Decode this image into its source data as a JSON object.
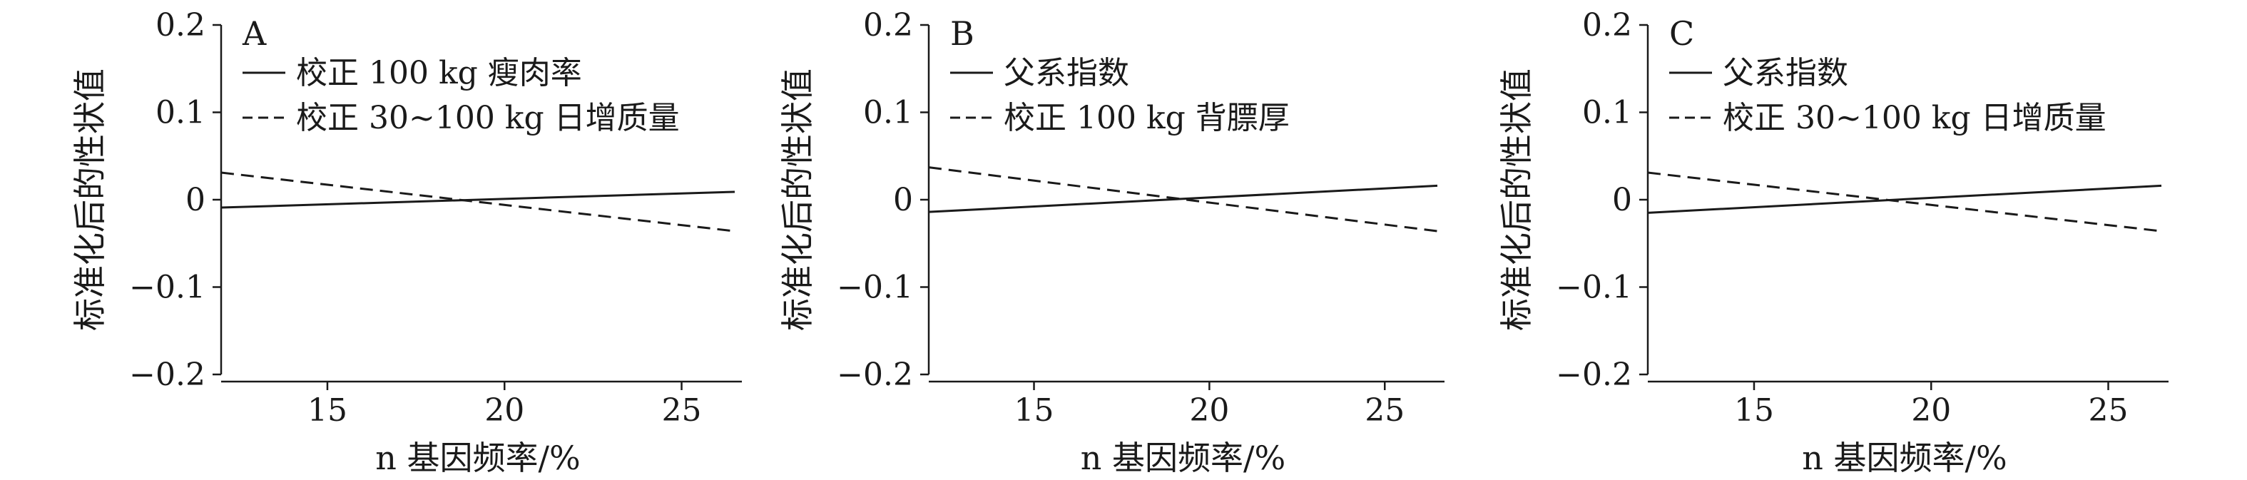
{
  "chart_data": [
    {
      "type": "line",
      "panel_label": "A",
      "xlabel": "n 基因频率/%",
      "ylabel": "标准化后的性状值",
      "xlim": [
        12,
        26.5
      ],
      "ylim": [
        -0.2,
        0.2
      ],
      "xticks": [
        15,
        20,
        25
      ],
      "yticks": [
        0.2,
        0.1,
        0,
        -0.1,
        -0.2
      ],
      "ytick_labels": [
        "0.2",
        "0.1",
        "0",
        "−0.1",
        "−0.2"
      ],
      "legend_position": "top-left",
      "grid": false,
      "series": [
        {
          "name": "校正 100 kg 瘦肉率",
          "style": "solid",
          "x": [
            12,
            26.5
          ],
          "y": [
            -0.009,
            0.009
          ]
        },
        {
          "name": "校正 30~100 kg 日增质量",
          "style": "dashed",
          "x": [
            12,
            26.5
          ],
          "y": [
            0.031,
            -0.036
          ]
        }
      ]
    },
    {
      "type": "line",
      "panel_label": "B",
      "xlabel": "n 基因频率/%",
      "ylabel": "标准化后的性状值",
      "xlim": [
        12,
        26.5
      ],
      "ylim": [
        -0.2,
        0.2
      ],
      "xticks": [
        15,
        20,
        25
      ],
      "yticks": [
        0.2,
        0.1,
        0,
        -0.1,
        -0.2
      ],
      "ytick_labels": [
        "0.2",
        "0.1",
        "0",
        "−0.1",
        "−0.2"
      ],
      "legend_position": "top-left",
      "grid": false,
      "series": [
        {
          "name": "父系指数",
          "style": "solid",
          "x": [
            12,
            26.5
          ],
          "y": [
            -0.014,
            0.016
          ]
        },
        {
          "name": "校正 100 kg 背膘厚",
          "style": "dashed",
          "x": [
            12,
            26.5
          ],
          "y": [
            0.037,
            -0.036
          ]
        }
      ]
    },
    {
      "type": "line",
      "panel_label": "C",
      "xlabel": "n 基因频率/%",
      "ylabel": "标准化后的性状值",
      "xlim": [
        12,
        26.5
      ],
      "ylim": [
        -0.2,
        0.2
      ],
      "xticks": [
        15,
        20,
        25
      ],
      "yticks": [
        0.2,
        0.1,
        0,
        -0.1,
        -0.2
      ],
      "ytick_labels": [
        "0.2",
        "0.1",
        "0",
        "−0.1",
        "−0.2"
      ],
      "legend_position": "top-left",
      "grid": false,
      "series": [
        {
          "name": "父系指数",
          "style": "solid",
          "x": [
            12,
            26.5
          ],
          "y": [
            -0.015,
            0.016
          ]
        },
        {
          "name": "校正 30~100 kg 日增质量",
          "style": "dashed",
          "x": [
            12,
            26.5
          ],
          "y": [
            0.031,
            -0.036
          ]
        }
      ]
    }
  ]
}
